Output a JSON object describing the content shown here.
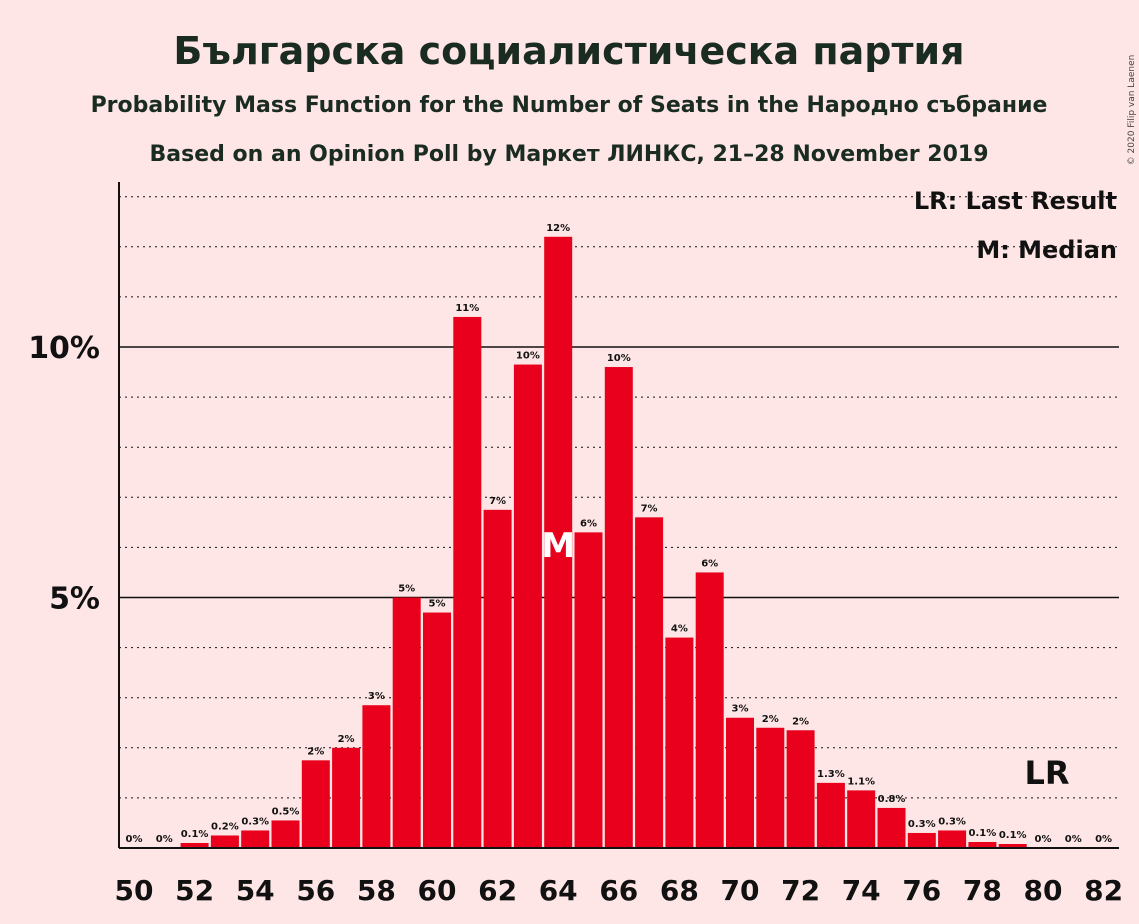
{
  "chart_data": {
    "type": "bar",
    "title": "Българска социалистическа партия",
    "subtitle": "Probability Mass Function for the Number of Seats in the Народно събрание",
    "subtitle2": "Based on an Opinion Poll by Маркет ЛИНКС, 21–28 November 2019",
    "copyright": "© 2020 Filip van Laenen",
    "legend": {
      "last_result": "LR: Last Result",
      "median": "M: Median",
      "placement": "top-right"
    },
    "x": [
      50,
      51,
      52,
      53,
      54,
      55,
      56,
      57,
      58,
      59,
      60,
      61,
      62,
      63,
      64,
      65,
      66,
      67,
      68,
      69,
      70,
      71,
      72,
      73,
      74,
      75,
      76,
      77,
      78,
      79,
      80,
      81,
      82
    ],
    "values": [
      0,
      0,
      0.1,
      0.25,
      0.35,
      0.55,
      1.75,
      2.0,
      2.85,
      5.0,
      4.7,
      10.6,
      6.75,
      9.65,
      12.2,
      6.3,
      9.6,
      6.6,
      4.2,
      5.5,
      2.6,
      2.4,
      2.35,
      1.3,
      1.15,
      0.8,
      0.3,
      0.35,
      0.12,
      0.08,
      0,
      0,
      0
    ],
    "data_labels": [
      "0%",
      "0%",
      "0.1%",
      "0.2%",
      "0.3%",
      "0.5%",
      "2%",
      "2%",
      "3%",
      "5%",
      "5%",
      "11%",
      "7%",
      "10%",
      "12%",
      "6%",
      "10%",
      "7%",
      "4%",
      "6%",
      "3%",
      "2%",
      "2%",
      "1.3%",
      "1.1%",
      "0.8%",
      "0.3%",
      "0.3%",
      "0.1%",
      "0.1%",
      "0%",
      "0%",
      "0%"
    ],
    "x_ticks": [
      "50",
      "52",
      "54",
      "56",
      "58",
      "60",
      "62",
      "64",
      "66",
      "68",
      "70",
      "72",
      "74",
      "76",
      "78",
      "80",
      "82"
    ],
    "y_ticks": [
      {
        "value": 5,
        "label": "5%"
      },
      {
        "value": 10,
        "label": "10%"
      }
    ],
    "ylim": [
      0,
      13.2
    ],
    "median_seat": 64,
    "median_label": "M",
    "last_result_seat": 80,
    "last_result_label": "LR",
    "bar_color": "#e8001c",
    "grid": "dotted",
    "background": "#ffe6e6"
  }
}
